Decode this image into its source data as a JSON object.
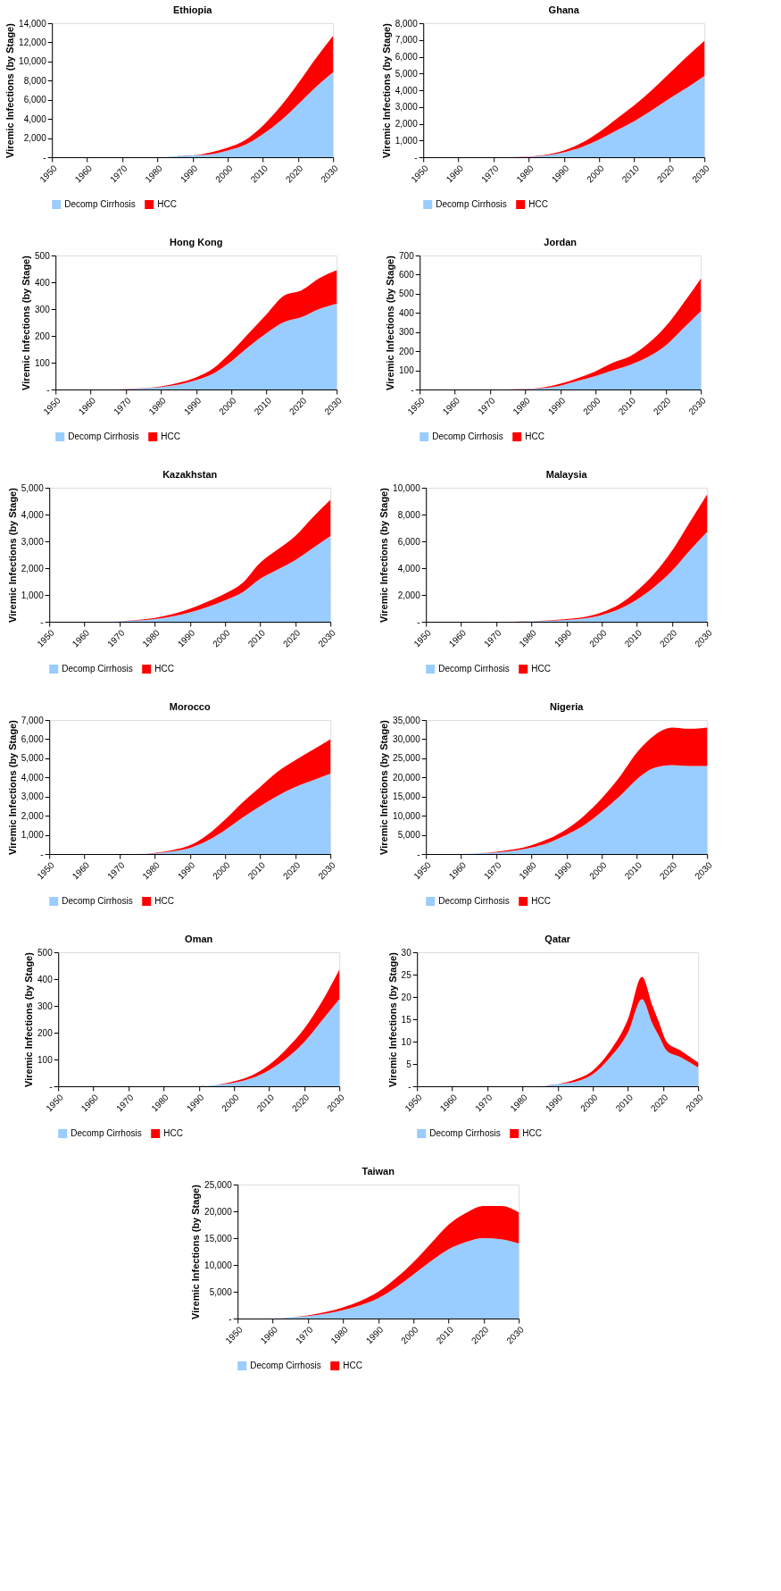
{
  "chart_data": [
    {
      "type": "area",
      "title": "Ethiopia",
      "ylabel": "Viremic Infections (by Stage)",
      "stacked": true,
      "legend": "bottom",
      "grid": false,
      "xlim": [
        1950,
        2030
      ],
      "xticks": [
        1950,
        1960,
        1970,
        1980,
        1990,
        2000,
        2010,
        2020,
        2030
      ],
      "ylim": [
        0,
        14000
      ],
      "yticks": [
        {
          "value": 0,
          "label": "-"
        },
        {
          "value": 2000,
          "label": "2,000"
        },
        {
          "value": 4000,
          "label": "4,000"
        },
        {
          "value": 6000,
          "label": "6,000"
        },
        {
          "value": 8000,
          "label": "8,000"
        },
        {
          "value": 10000,
          "label": "10,000"
        },
        {
          "value": 12000,
          "label": "12,000"
        },
        {
          "value": 14000,
          "label": "14,000"
        }
      ],
      "x": [
        1950,
        1955,
        1960,
        1965,
        1970,
        1975,
        1980,
        1985,
        1990,
        1995,
        2000,
        2005,
        2010,
        2015,
        2020,
        2025,
        2030
      ],
      "series": [
        {
          "name": "Decomp Cirrhosis",
          "color": "#99ccff",
          "values": [
            0,
            0,
            0,
            0,
            0,
            0,
            0,
            100,
            200,
            300,
            700,
            1300,
            2400,
            3800,
            5500,
            7300,
            8900
          ]
        },
        {
          "name": "HCC",
          "color": "#ff0000",
          "values": [
            0,
            0,
            0,
            0,
            0,
            0,
            0,
            0,
            0,
            200,
            300,
            500,
            900,
            1500,
            2200,
            3000,
            3800
          ]
        }
      ]
    },
    {
      "type": "area",
      "title": "Ghana",
      "ylabel": "Viremic Infections (by Stage)",
      "stacked": true,
      "legend": "bottom",
      "grid": false,
      "xlim": [
        1950,
        2030
      ],
      "xticks": [
        1950,
        1960,
        1970,
        1980,
        1990,
        2000,
        2010,
        2020,
        2030
      ],
      "ylim": [
        0,
        8000
      ],
      "yticks": [
        {
          "value": 0,
          "label": "-"
        },
        {
          "value": 1000,
          "label": "1,000"
        },
        {
          "value": 2000,
          "label": "2,000"
        },
        {
          "value": 3000,
          "label": "3,000"
        },
        {
          "value": 4000,
          "label": "4,000"
        },
        {
          "value": 5000,
          "label": "5,000"
        },
        {
          "value": 6000,
          "label": "6,000"
        },
        {
          "value": 7000,
          "label": "7,000"
        },
        {
          "value": 8000,
          "label": "8,000"
        }
      ],
      "x": [
        1950,
        1955,
        1960,
        1965,
        1970,
        1975,
        1980,
        1985,
        1990,
        1995,
        2000,
        2005,
        2010,
        2015,
        2020,
        2025,
        2030
      ],
      "series": [
        {
          "name": "Decomp Cirrhosis",
          "color": "#99ccff",
          "values": [
            0,
            0,
            0,
            0,
            0,
            0,
            30,
            110,
            300,
            600,
            1050,
            1600,
            2150,
            2800,
            3500,
            4150,
            4850
          ]
        },
        {
          "name": "HCC",
          "color": "#ff0000",
          "values": [
            0,
            0,
            0,
            0,
            0,
            0,
            10,
            40,
            100,
            250,
            450,
            700,
            950,
            1200,
            1500,
            1850,
            2100
          ]
        }
      ]
    },
    {
      "type": "area",
      "title": "Hong Kong",
      "ylabel": "Viremic Infections (by Stage)",
      "stacked": true,
      "legend": "bottom",
      "grid": false,
      "xlim": [
        1950,
        2030
      ],
      "xticks": [
        1950,
        1960,
        1970,
        1980,
        1990,
        2000,
        2010,
        2020,
        2030
      ],
      "ylim": [
        0,
        500
      ],
      "yticks": [
        {
          "value": 0,
          "label": "-"
        },
        100,
        200,
        300,
        400,
        500
      ],
      "x": [
        1950,
        1955,
        1960,
        1965,
        1970,
        1975,
        1980,
        1985,
        1990,
        1995,
        2000,
        2005,
        2010,
        2015,
        2020,
        2025,
        2030
      ],
      "series": [
        {
          "name": "Decomp Cirrhosis",
          "color": "#99ccff",
          "values": [
            0,
            0,
            0,
            0,
            1,
            4,
            9,
            18,
            35,
            60,
            105,
            160,
            210,
            252,
            270,
            300,
            320
          ]
        },
        {
          "name": "HCC",
          "color": "#ff0000",
          "values": [
            0,
            0,
            0,
            0,
            1,
            1,
            3,
            7,
            10,
            20,
            35,
            50,
            70,
            98,
            100,
            115,
            125
          ]
        }
      ]
    },
    {
      "type": "area",
      "title": "Jordan",
      "ylabel": "Viremic Infections (by Stage)",
      "stacked": true,
      "legend": "bottom",
      "grid": false,
      "xlim": [
        1950,
        2030
      ],
      "xticks": [
        1950,
        1960,
        1970,
        1980,
        1990,
        2000,
        2010,
        2020,
        2030
      ],
      "ylim": [
        0,
        700
      ],
      "yticks": [
        {
          "value": 0,
          "label": "-"
        },
        100,
        200,
        300,
        400,
        500,
        600,
        700
      ],
      "x": [
        1950,
        1955,
        1960,
        1965,
        1970,
        1975,
        1980,
        1985,
        1990,
        1995,
        2000,
        2005,
        2010,
        2015,
        2020,
        2025,
        2030
      ],
      "series": [
        {
          "name": "Decomp Cirrhosis",
          "color": "#99ccff",
          "values": [
            0,
            0,
            0,
            0,
            0,
            0,
            1,
            7,
            20,
            45,
            70,
            100,
            130,
            170,
            230,
            320,
            410
          ]
        },
        {
          "name": "HCC",
          "color": "#ff0000",
          "values": [
            0,
            0,
            0,
            0,
            0,
            0,
            1,
            3,
            10,
            15,
            25,
            40,
            45,
            70,
            100,
            130,
            170
          ]
        }
      ]
    },
    {
      "type": "area",
      "title": "Kazakhstan",
      "ylabel": "Viremic Infections (by Stage)",
      "stacked": true,
      "legend": "bottom",
      "grid": false,
      "xlim": [
        1950,
        2030
      ],
      "xticks": [
        1950,
        1960,
        1970,
        1980,
        1990,
        2000,
        2010,
        2020,
        2030
      ],
      "ylim": [
        0,
        5000
      ],
      "yticks": [
        {
          "value": 0,
          "label": "-"
        },
        {
          "value": 1000,
          "label": "1,000"
        },
        {
          "value": 2000,
          "label": "2,000"
        },
        {
          "value": 3000,
          "label": "3,000"
        },
        {
          "value": 4000,
          "label": "4,000"
        },
        {
          "value": 5000,
          "label": "5,000"
        }
      ],
      "x": [
        1950,
        1955,
        1960,
        1965,
        1970,
        1975,
        1980,
        1985,
        1990,
        1995,
        2000,
        2005,
        2010,
        2015,
        2020,
        2025,
        2030
      ],
      "series": [
        {
          "name": "Decomp Cirrhosis",
          "color": "#99ccff",
          "values": [
            0,
            0,
            0,
            0,
            20,
            50,
            100,
            200,
            350,
            550,
            800,
            1100,
            1600,
            1950,
            2300,
            2750,
            3200
          ]
        },
        {
          "name": "HCC",
          "color": "#ff0000",
          "values": [
            0,
            0,
            0,
            0,
            0,
            20,
            40,
            80,
            130,
            200,
            250,
            350,
            600,
            750,
            900,
            1150,
            1350
          ]
        }
      ]
    },
    {
      "type": "area",
      "title": "Malaysia",
      "ylabel": "Viremic Infections (by Stage)",
      "stacked": true,
      "legend": "bottom",
      "grid": false,
      "xlim": [
        1950,
        2030
      ],
      "xticks": [
        1950,
        1960,
        1970,
        1980,
        1990,
        2000,
        2010,
        2020,
        2030
      ],
      "ylim": [
        0,
        10000
      ],
      "yticks": [
        {
          "value": 0,
          "label": "-"
        },
        {
          "value": 2000,
          "label": "2,000"
        },
        {
          "value": 4000,
          "label": "4,000"
        },
        {
          "value": 6000,
          "label": "6,000"
        },
        {
          "value": 8000,
          "label": "8,000"
        },
        {
          "value": 10000,
          "label": "10,000"
        }
      ],
      "x": [
        1950,
        1955,
        1960,
        1965,
        1970,
        1975,
        1980,
        1985,
        1990,
        1995,
        2000,
        2005,
        2010,
        2015,
        2020,
        2025,
        2030
      ],
      "series": [
        {
          "name": "Decomp Cirrhosis",
          "color": "#99ccff",
          "values": [
            0,
            0,
            0,
            0,
            0,
            0,
            30,
            70,
            140,
            250,
            500,
            950,
            1650,
            2600,
            3800,
            5300,
            6700
          ]
        },
        {
          "name": "HCC",
          "color": "#ff0000",
          "values": [
            0,
            0,
            0,
            0,
            0,
            0,
            10,
            30,
            60,
            100,
            200,
            350,
            650,
            1000,
            1500,
            2100,
            2800
          ]
        }
      ]
    },
    {
      "type": "area",
      "title": "Morocco",
      "ylabel": "Viremic Infections (by Stage)",
      "stacked": true,
      "legend": "bottom",
      "grid": false,
      "xlim": [
        1950,
        2030
      ],
      "xticks": [
        1950,
        1960,
        1970,
        1980,
        1990,
        2000,
        2010,
        2020,
        2030
      ],
      "ylim": [
        0,
        7000
      ],
      "yticks": [
        {
          "value": 0,
          "label": "-"
        },
        {
          "value": 1000,
          "label": "1,000"
        },
        {
          "value": 2000,
          "label": "2,000"
        },
        {
          "value": 3000,
          "label": "3,000"
        },
        {
          "value": 4000,
          "label": "4,000"
        },
        {
          "value": 5000,
          "label": "5,000"
        },
        {
          "value": 6000,
          "label": "6,000"
        },
        {
          "value": 7000,
          "label": "7,000"
        }
      ],
      "x": [
        1950,
        1955,
        1960,
        1965,
        1970,
        1975,
        1980,
        1985,
        1990,
        1995,
        2000,
        2005,
        2010,
        2015,
        2020,
        2025,
        2030
      ],
      "series": [
        {
          "name": "Decomp Cirrhosis",
          "color": "#99ccff",
          "values": [
            0,
            0,
            0,
            0,
            0,
            0,
            40,
            140,
            320,
            700,
            1250,
            1900,
            2500,
            3050,
            3500,
            3850,
            4200
          ]
        },
        {
          "name": "HCC",
          "color": "#ff0000",
          "values": [
            0,
            0,
            0,
            0,
            0,
            0,
            20,
            60,
            130,
            300,
            550,
            800,
            1000,
            1250,
            1400,
            1600,
            1800
          ]
        }
      ]
    },
    {
      "type": "area",
      "title": "Nigeria",
      "ylabel": "Viremic Infections (by Stage)",
      "stacked": true,
      "legend": "bottom",
      "grid": false,
      "xlim": [
        1950,
        2030
      ],
      "xticks": [
        1950,
        1960,
        1970,
        1980,
        1990,
        2000,
        2010,
        2020,
        2030
      ],
      "ylim": [
        0,
        35000
      ],
      "yticks": [
        {
          "value": 0,
          "label": "-"
        },
        {
          "value": 5000,
          "label": "5,000"
        },
        {
          "value": 10000,
          "label": "10,000"
        },
        {
          "value": 15000,
          "label": "15,000"
        },
        {
          "value": 20000,
          "label": "20,000"
        },
        {
          "value": 25000,
          "label": "25,000"
        },
        {
          "value": 30000,
          "label": "30,000"
        },
        {
          "value": 35000,
          "label": "35,000"
        }
      ],
      "x": [
        1950,
        1955,
        1960,
        1965,
        1970,
        1975,
        1980,
        1985,
        1990,
        1995,
        2000,
        2005,
        2010,
        2015,
        2020,
        2025,
        2030
      ],
      "series": [
        {
          "name": "Decomp Cirrhosis",
          "color": "#99ccff",
          "values": [
            0,
            0,
            0,
            200,
            400,
            900,
            1700,
            3000,
            5000,
            7500,
            11000,
            15000,
            19500,
            22500,
            23200,
            23000,
            23000
          ]
        },
        {
          "name": "HCC",
          "color": "#ff0000",
          "values": [
            0,
            0,
            0,
            0,
            200,
            300,
            600,
            1000,
            1500,
            2500,
            3500,
            5000,
            7000,
            8500,
            9800,
            9700,
            10000
          ]
        }
      ]
    },
    {
      "type": "area",
      "title": "Oman",
      "ylabel": "Viremic Infections (by Stage)",
      "stacked": true,
      "legend": "bottom",
      "grid": false,
      "xlim": [
        1950,
        2030
      ],
      "xticks": [
        1950,
        1960,
        1970,
        1980,
        1990,
        2000,
        2010,
        2020,
        2030
      ],
      "ylim": [
        0,
        500
      ],
      "yticks": [
        {
          "value": 0,
          "label": "-"
        },
        100,
        200,
        300,
        400,
        500
      ],
      "x": [
        1950,
        1955,
        1960,
        1965,
        1970,
        1975,
        1980,
        1985,
        1990,
        1995,
        2000,
        2005,
        2010,
        2015,
        2020,
        2025,
        2030
      ],
      "series": [
        {
          "name": "Decomp Cirrhosis",
          "color": "#99ccff",
          "values": [
            0,
            0,
            0,
            0,
            0,
            0,
            0,
            0,
            0,
            5,
            13,
            30,
            60,
            105,
            165,
            245,
            325
          ]
        },
        {
          "name": "HCC",
          "color": "#ff0000",
          "values": [
            0,
            0,
            0,
            0,
            0,
            0,
            0,
            0,
            0,
            0,
            5,
            10,
            20,
            35,
            50,
            70,
            110
          ]
        }
      ]
    },
    {
      "type": "area",
      "title": "Qatar",
      "ylabel": "Viremic Infections (by Stage)",
      "stacked": true,
      "legend": "bottom",
      "grid": false,
      "xlim": [
        1950,
        2030
      ],
      "xticks": [
        1950,
        1960,
        1970,
        1980,
        1990,
        2000,
        2010,
        2020,
        2030
      ],
      "ylim": [
        0,
        30
      ],
      "yticks": [
        {
          "value": 0,
          "label": "-"
        },
        5,
        10,
        15,
        20,
        25,
        30
      ],
      "x": [
        1950,
        1960,
        1970,
        1980,
        1985,
        1990,
        1995,
        2000,
        2005,
        2010,
        2014,
        2017,
        2019,
        2021,
        2025,
        2030
      ],
      "series": [
        {
          "name": "Decomp Cirrhosis",
          "color": "#99ccff",
          "values": [
            0,
            0,
            0,
            0,
            0,
            0.5,
            1,
            2.7,
            6.5,
            12,
            19.5,
            14,
            11,
            8,
            6.5,
            4.2
          ]
        },
        {
          "name": "HCC",
          "color": "#ff0000",
          "values": [
            0,
            0,
            0,
            0,
            0,
            0,
            0.5,
            0.8,
            1.5,
            3,
            5,
            4,
            3,
            2,
            1.5,
            1.1
          ]
        }
      ]
    },
    {
      "type": "area",
      "title": "Taiwan",
      "ylabel": "Viremic Infections (by Stage)",
      "stacked": true,
      "legend": "bottom",
      "grid": false,
      "xlim": [
        1950,
        2030
      ],
      "xticks": [
        1950,
        1960,
        1970,
        1980,
        1990,
        2000,
        2010,
        2020,
        2030
      ],
      "ylim": [
        0,
        25000
      ],
      "yticks": [
        {
          "value": 0,
          "label": "-"
        },
        {
          "value": 5000,
          "label": "5,000"
        },
        {
          "value": 10000,
          "label": "10,000"
        },
        {
          "value": 15000,
          "label": "15,000"
        },
        {
          "value": 20000,
          "label": "20,000"
        },
        {
          "value": 25000,
          "label": "25,000"
        }
      ],
      "x": [
        1950,
        1955,
        1960,
        1965,
        1970,
        1975,
        1980,
        1985,
        1990,
        1995,
        2000,
        2005,
        2010,
        2015,
        2020,
        2025,
        2030
      ],
      "series": [
        {
          "name": "Decomp Cirrhosis",
          "color": "#99ccff",
          "values": [
            0,
            0,
            0,
            200,
            450,
            900,
            1600,
            2500,
            3800,
            5800,
            8200,
            10700,
            12900,
            14300,
            15000,
            14800,
            14000
          ]
        },
        {
          "name": "HCC",
          "color": "#ff0000",
          "values": [
            0,
            0,
            0,
            0,
            150,
            300,
            500,
            800,
            1200,
            1700,
            2300,
            3300,
            4600,
            5400,
            6000,
            6200,
            5800
          ]
        }
      ]
    }
  ]
}
